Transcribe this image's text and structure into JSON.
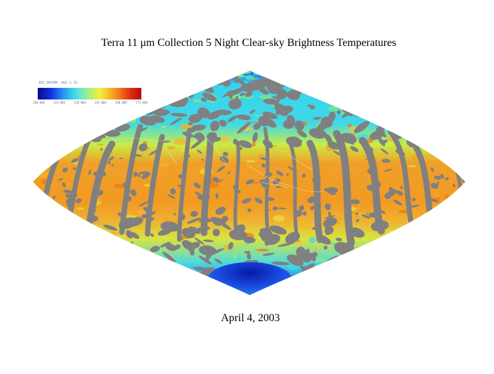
{
  "title": "Terra 11 μm Collection 5 Night Clear-sky Brightness Temperatures",
  "date": "April 4, 2003",
  "colorbar": {
    "header": "IR1 DAYDM: AUG 1 31",
    "tick_labels": [
      "200.000",
      "215.000",
      "230.000",
      "245.000",
      "260.000",
      "275.000"
    ],
    "colors": [
      "#0a0a8c",
      "#0f2fe0",
      "#2a8cf2",
      "#38d2ee",
      "#6fe8c8",
      "#b8f26a",
      "#f2f040",
      "#f7b22a",
      "#f07018",
      "#e02a10",
      "#b80a0a"
    ]
  },
  "map": {
    "projection": "sinusoidal",
    "no_data_color": "#808080",
    "warm_color": "#f0a028",
    "mid_color": "#e2e23a",
    "cool_color": "#40d8e6",
    "polar_color": "#1060e0"
  }
}
